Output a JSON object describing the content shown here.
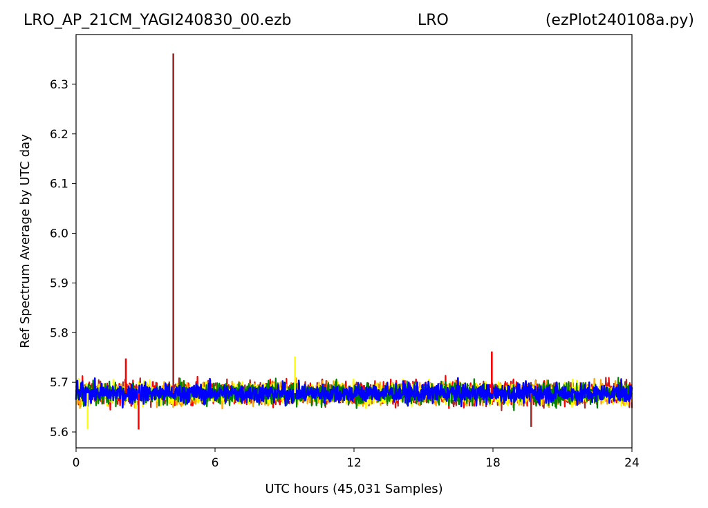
{
  "header": {
    "left": "LRO_AP_21CM_YAGI240830_00.ezb",
    "center": "LRO",
    "right": "(ezPlot240108a.py)"
  },
  "chart_data": {
    "type": "line",
    "title": "",
    "xlabel": "UTC hours  (45,031 Samples)",
    "ylabel": "Ref Spectrum Average by UTC day",
    "xlim": [
      0,
      24
    ],
    "ylim": [
      5.568,
      6.4
    ],
    "xticks": [
      0,
      6,
      12,
      18,
      24
    ],
    "xtick_labels": [
      "0",
      "6",
      "12",
      "18",
      "24"
    ],
    "yticks": [
      5.6,
      5.7,
      5.8,
      5.9,
      6.0,
      6.1,
      6.2,
      6.3
    ],
    "ytick_labels": [
      "5.6",
      "5.7",
      "5.8",
      "5.9",
      "6.0",
      "6.1",
      "6.2",
      "6.3"
    ],
    "grid": false,
    "legend": "none",
    "series_colors": [
      "#a52a2a",
      "#ff0000",
      "#ffa500",
      "#ffff00",
      "#008000",
      "#0000ff"
    ],
    "noise_band": {
      "center": 5.678,
      "typical_min": 5.64,
      "typical_max": 5.715
    },
    "notable_points": [
      {
        "x": 4.2,
        "y": 6.362,
        "color": "#a52a2a"
      },
      {
        "x": 17.95,
        "y": 5.762,
        "color": "#ff0000"
      },
      {
        "x": 2.15,
        "y": 5.748,
        "color": "#ff0000"
      },
      {
        "x": 9.45,
        "y": 5.752,
        "color": "#ffff00"
      },
      {
        "x": 2.7,
        "y": 5.605,
        "color": "#ff0000"
      },
      {
        "x": 0.5,
        "y": 5.606,
        "color": "#ffff00"
      },
      {
        "x": 19.65,
        "y": 5.61,
        "color": "#a52a2a"
      }
    ]
  }
}
